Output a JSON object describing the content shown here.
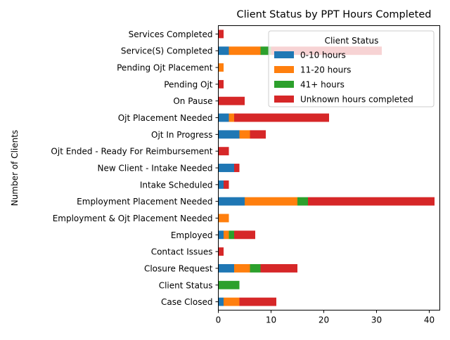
{
  "chart_data": {
    "type": "bar",
    "orientation": "horizontal",
    "stacked": true,
    "title": "Client Status by PPT Hours Completed",
    "xlabel": "",
    "ylabel": "Number of Clients",
    "xlim": [
      0,
      42
    ],
    "xticks": [
      0,
      10,
      20,
      30,
      40
    ],
    "grid": false,
    "legend": {
      "title": "Client Status",
      "placement": "top-right"
    },
    "categories": [
      "Case Closed",
      "Client Status",
      "Closure Request",
      "Contact Issues",
      "Employed",
      "Employment & Ojt Placement Needed",
      "Employment Placement Needed",
      "Intake Scheduled",
      "New Client - Intake Needed",
      "Ojt Ended - Ready For Reimbursement",
      "Ojt In Progress",
      "Ojt Placement Needed",
      "On Pause",
      "Pending Ojt",
      "Pending Ojt Placement",
      "Service(S) Completed",
      "Services Completed"
    ],
    "series": [
      {
        "name": "0-10 hours",
        "color": "#1f77b4",
        "values": [
          1,
          0,
          3,
          0,
          1,
          0,
          5,
          1,
          3,
          0,
          4,
          2,
          0,
          0,
          0,
          2,
          0
        ]
      },
      {
        "name": "11-20 hours",
        "color": "#ff7f0e",
        "values": [
          3,
          0,
          3,
          0,
          1,
          2,
          10,
          0,
          0,
          0,
          2,
          1,
          0,
          0,
          1,
          6,
          0
        ]
      },
      {
        "name": "41+ hours",
        "color": "#2ca02c",
        "values": [
          0,
          4,
          2,
          0,
          1,
          0,
          2,
          0,
          0,
          0,
          0,
          0,
          0,
          0,
          0,
          2,
          0
        ]
      },
      {
        "name": "Unknown hours completed",
        "color": "#d62728",
        "values": [
          7,
          0,
          7,
          1,
          4,
          0,
          24,
          1,
          1,
          2,
          3,
          18,
          5,
          1,
          0,
          21,
          1
        ]
      }
    ]
  }
}
